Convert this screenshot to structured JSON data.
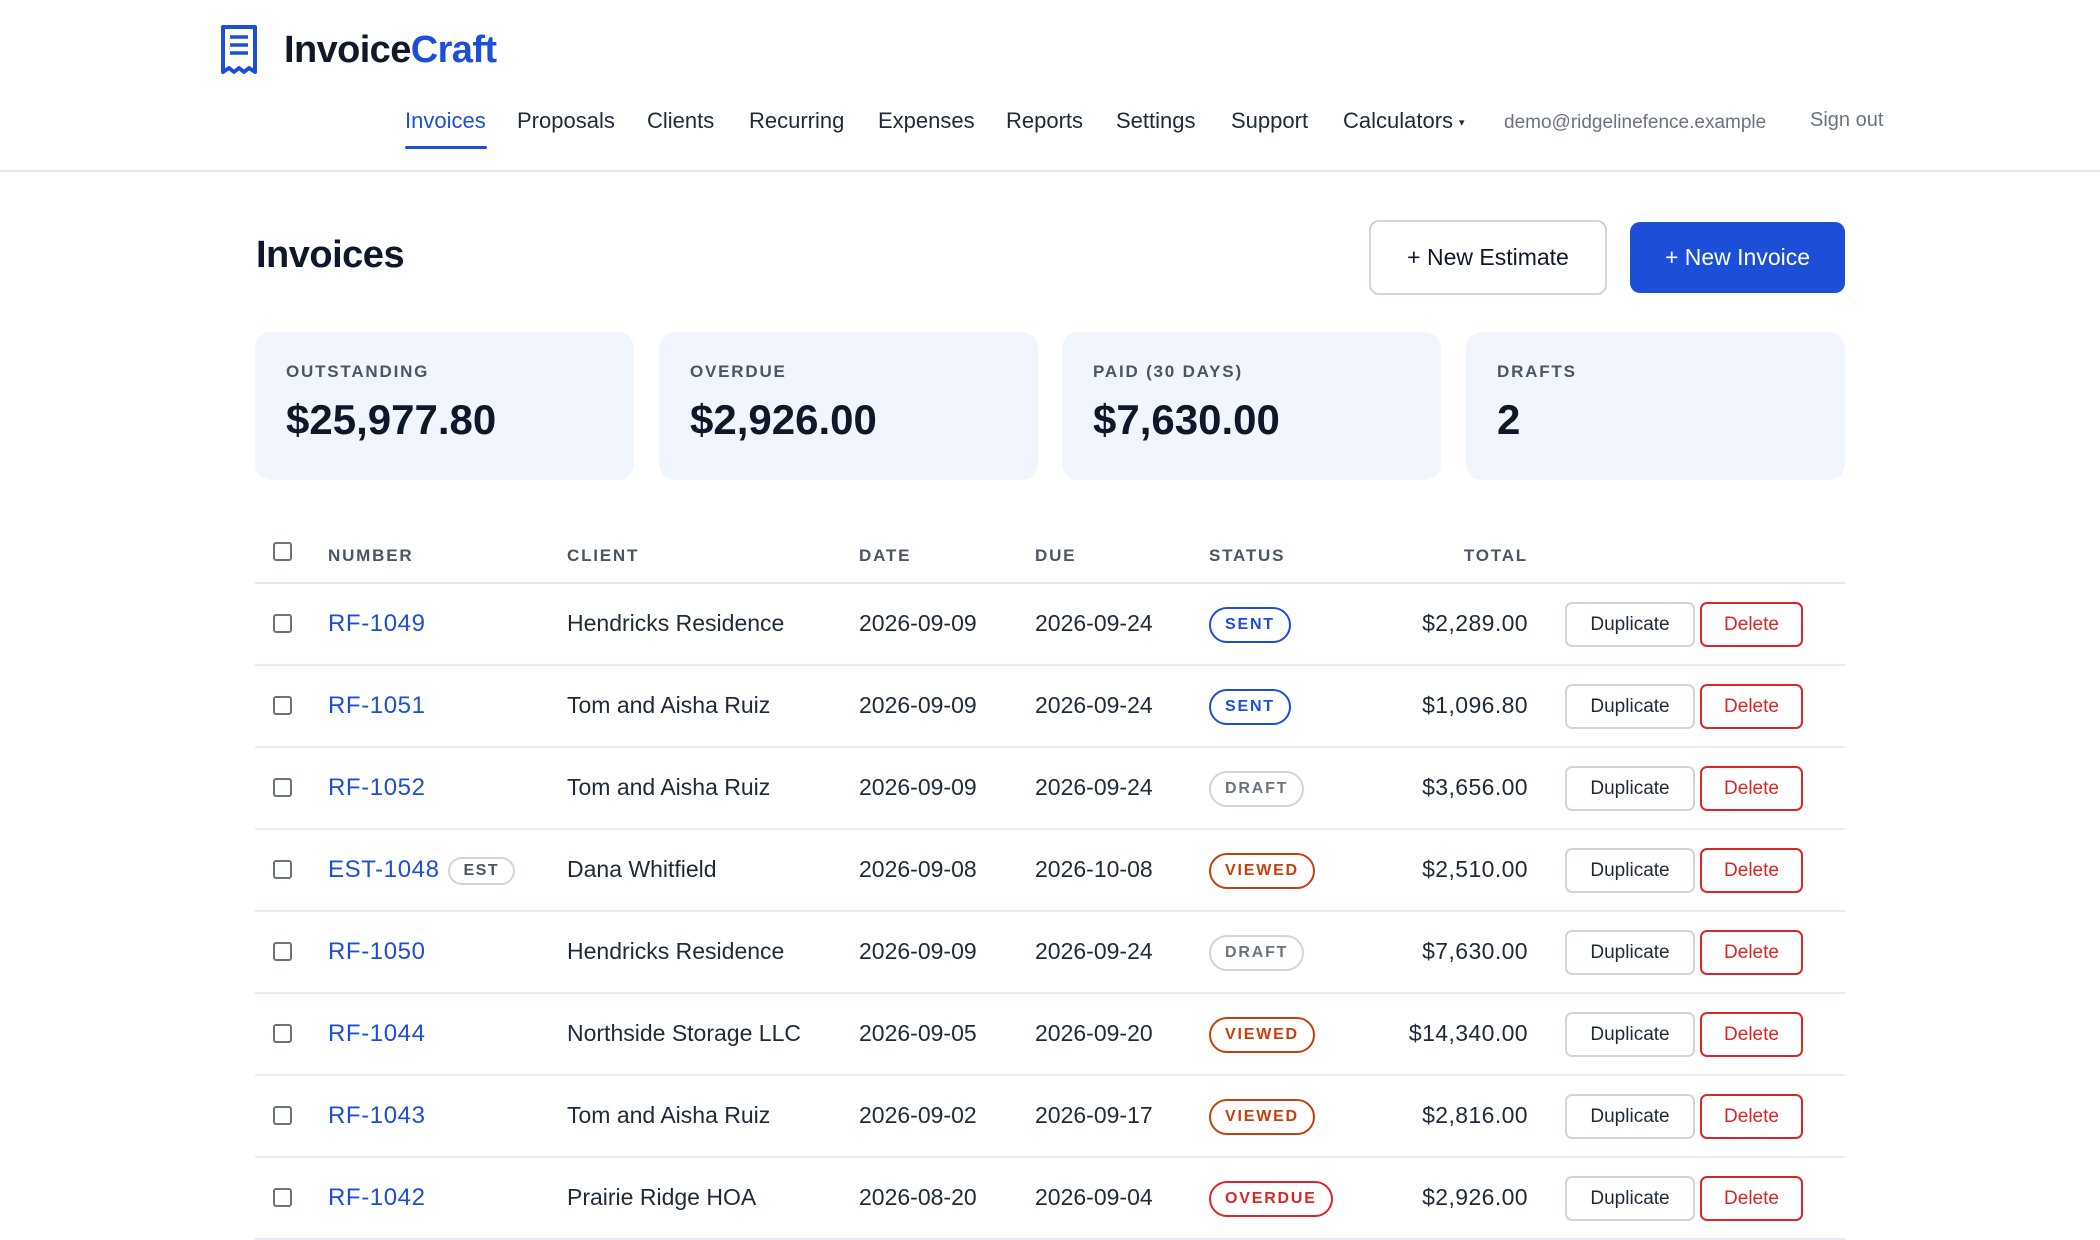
{
  "brand": {
    "name_part1": "Invoice",
    "name_part2": "Craft",
    "icon": "receipt-icon",
    "accent": "#1d4ed8"
  },
  "nav": {
    "items": [
      {
        "label": "Invoices",
        "active": true
      },
      {
        "label": "Proposals"
      },
      {
        "label": "Clients"
      },
      {
        "label": "Recurring"
      },
      {
        "label": "Expenses"
      },
      {
        "label": "Reports"
      },
      {
        "label": "Settings"
      },
      {
        "label": "Support"
      },
      {
        "label": "Calculators",
        "caret": "▾"
      }
    ],
    "user_email": "demo@ridgelinefence.example",
    "sign_out": "Sign out"
  },
  "page": {
    "title": "Invoices",
    "new_estimate": "+ New Estimate",
    "new_invoice": "+ New Invoice"
  },
  "stats": [
    {
      "label": "OUTSTANDING",
      "value": "$25,977.80"
    },
    {
      "label": "OVERDUE",
      "value": "$2,926.00"
    },
    {
      "label": "PAID (30 DAYS)",
      "value": "$7,630.00"
    },
    {
      "label": "DRAFTS",
      "value": "2"
    }
  ],
  "table": {
    "headers": {
      "number": "NUMBER",
      "client": "CLIENT",
      "date": "DATE",
      "due": "DUE",
      "status": "STATUS",
      "total": "TOTAL"
    },
    "duplicate_label": "Duplicate",
    "delete_label": "Delete",
    "status_colors": {
      "sent": {
        "text": "#1d4ed8",
        "border": "#1d4ed8"
      },
      "draft": {
        "text": "#6b7280",
        "border": "#d1d5db"
      },
      "viewed": {
        "text": "#c2410c",
        "border": "#c2410c"
      },
      "overdue": {
        "text": "#dc2626",
        "border": "#dc2626"
      }
    },
    "rows": [
      {
        "number": "RF-1049",
        "client": "Hendricks Residence",
        "date": "2026-09-09",
        "due": "2026-09-24",
        "status": "SENT",
        "status_key": "sent",
        "total": "$2,289.00"
      },
      {
        "number": "RF-1051",
        "client": "Tom and Aisha Ruiz",
        "date": "2026-09-09",
        "due": "2026-09-24",
        "status": "SENT",
        "status_key": "sent",
        "total": "$1,096.80"
      },
      {
        "number": "RF-1052",
        "client": "Tom and Aisha Ruiz",
        "date": "2026-09-09",
        "due": "2026-09-24",
        "status": "DRAFT",
        "status_key": "draft",
        "total": "$3,656.00"
      },
      {
        "number": "EST-1048",
        "badge": "EST",
        "client": "Dana Whitfield",
        "date": "2026-09-08",
        "due": "2026-10-08",
        "status": "VIEWED",
        "status_key": "viewed",
        "total": "$2,510.00"
      },
      {
        "number": "RF-1050",
        "client": "Hendricks Residence",
        "date": "2026-09-09",
        "due": "2026-09-24",
        "status": "DRAFT",
        "status_key": "draft",
        "total": "$7,630.00"
      },
      {
        "number": "RF-1044",
        "client": "Northside Storage LLC",
        "date": "2026-09-05",
        "due": "2026-09-20",
        "status": "VIEWED",
        "status_key": "viewed",
        "total": "$14,340.00"
      },
      {
        "number": "RF-1043",
        "client": "Tom and Aisha Ruiz",
        "date": "2026-09-02",
        "due": "2026-09-17",
        "status": "VIEWED",
        "status_key": "viewed",
        "total": "$2,816.00"
      },
      {
        "number": "RF-1042",
        "client": "Prairie Ridge HOA",
        "date": "2026-08-20",
        "due": "2026-09-04",
        "status": "OVERDUE",
        "status_key": "overdue",
        "total": "$2,926.00"
      }
    ]
  }
}
